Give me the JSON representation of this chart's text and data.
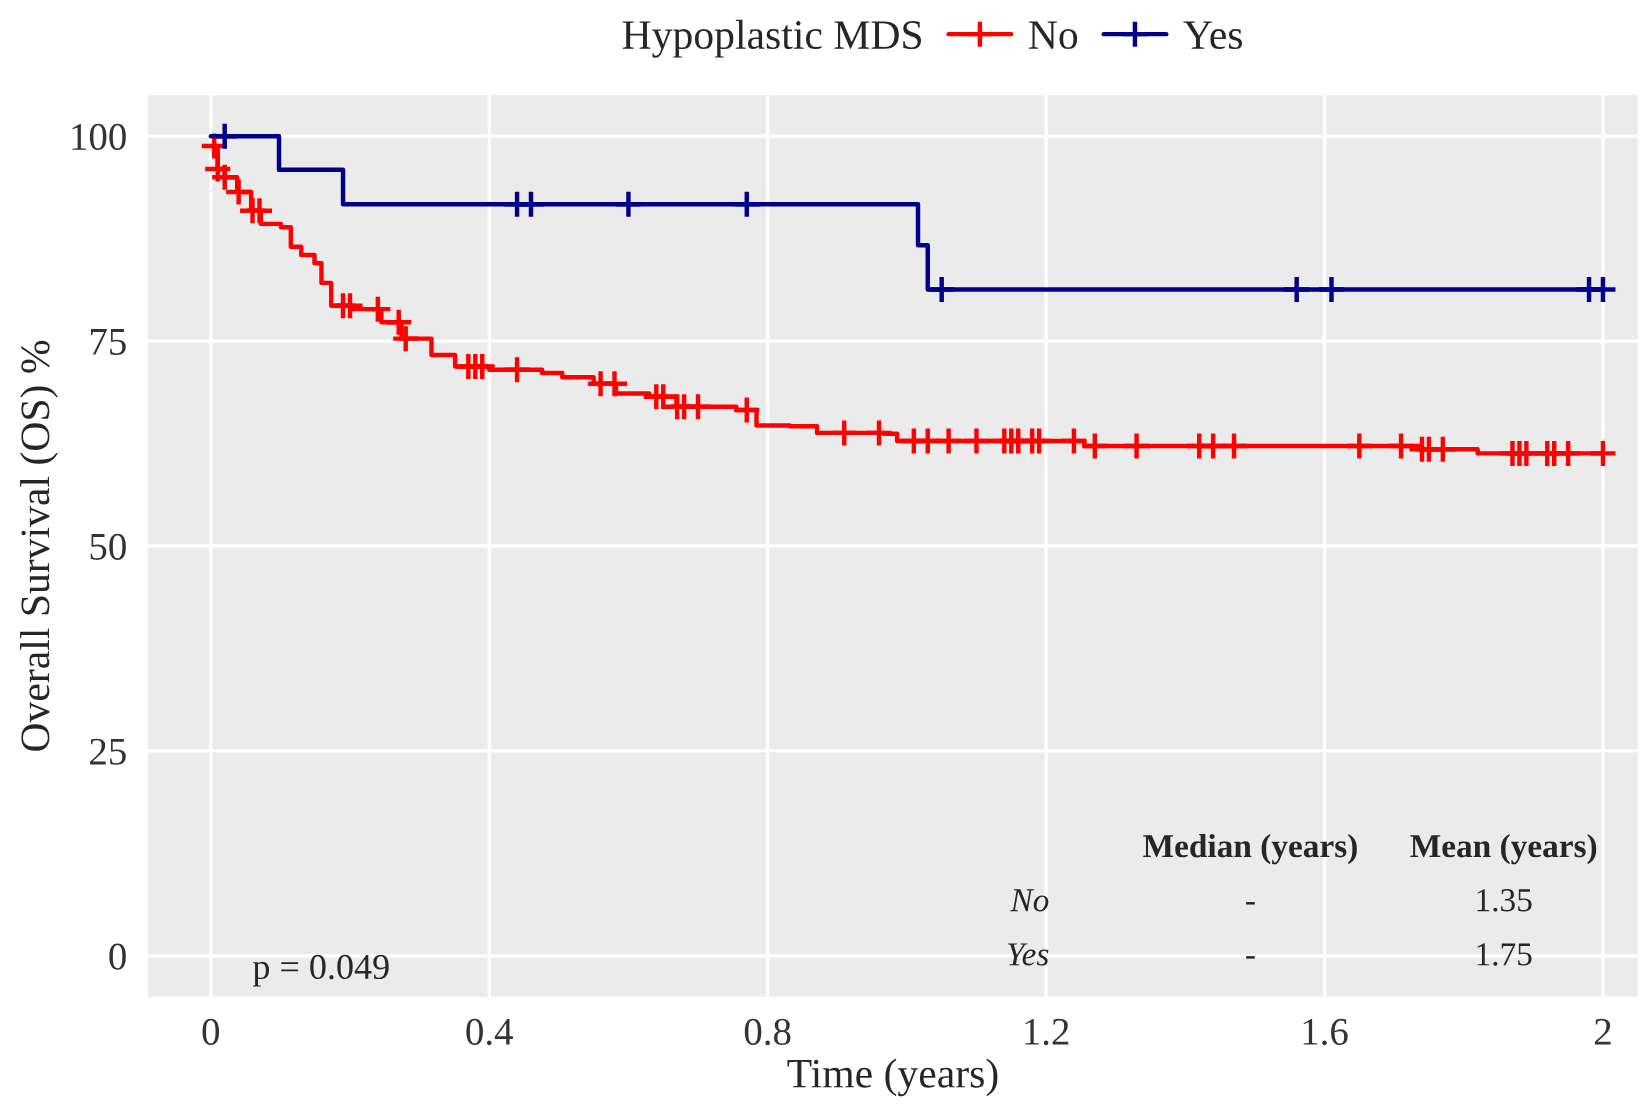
{
  "chart_data": {
    "type": "step",
    "xlabel": "Time (years)",
    "ylabel": "Overall Survival (OS) %",
    "legend_title": "Hypoplastic MDS",
    "legend": "top",
    "xlim": [
      -0.09,
      2.05
    ],
    "ylim": [
      -5,
      105
    ],
    "xticks": [
      0,
      0.4,
      0.8,
      1.2,
      1.6,
      2
    ],
    "yticks": [
      0,
      25,
      50,
      75,
      100
    ],
    "grid": true,
    "line_style": "solid",
    "series": [
      {
        "name": "No",
        "color": "#ff0000",
        "x": [
          0,
          0.01,
          0.02,
          0.038,
          0.058,
          0.072,
          0.101,
          0.115,
          0.13,
          0.149,
          0.159,
          0.173,
          0.202,
          0.245,
          0.274,
          0.317,
          0.351,
          0.4,
          0.476,
          0.505,
          0.55,
          0.582,
          0.63,
          0.669,
          0.755,
          0.784,
          0.832,
          0.871,
          0.967,
          0.986,
          1.255,
          1.736,
          1.82,
          2.0
        ],
        "values": [
          98.8,
          96.0,
          95,
          93.2,
          90.9,
          89.3,
          88.9,
          86.5,
          85.5,
          84.5,
          82.1,
          79.3,
          78.9,
          77.3,
          75.3,
          73.3,
          71.9,
          71.5,
          71.1,
          70.6,
          69.8,
          68.6,
          68.2,
          67.0,
          66.6,
          64.7,
          64.6,
          63.8,
          63.7,
          62.8,
          62.2,
          61.8,
          61.3,
          61.3
        ]
      },
      {
        "name": "Yes",
        "color": "#00008b",
        "x": [
          0,
          0.098,
          0.19,
          1.016,
          1.03,
          2.0
        ],
        "values": [
          100,
          95.9,
          91.7,
          86.7,
          81.3,
          81.3
        ]
      },
      {
        "color": "#ff0000",
        "type": "scatter",
        "marker": "cross",
        "x": [
          0.005,
          0.01,
          0.02,
          0.04,
          0.06,
          0.07,
          0.19,
          0.2,
          0.24,
          0.27,
          0.28,
          0.37,
          0.38,
          0.39,
          0.44,
          0.56,
          0.58,
          0.64,
          0.65,
          0.67,
          0.68,
          0.7,
          0.77,
          0.91,
          0.96,
          1.01,
          1.03,
          1.06,
          1.1,
          1.14,
          1.15,
          1.16,
          1.18,
          1.19,
          1.24,
          1.27,
          1.33,
          1.42,
          1.44,
          1.47,
          1.65,
          1.71,
          1.74,
          1.75,
          1.77,
          1.87,
          1.88,
          1.89,
          1.92,
          1.93,
          1.95,
          2.0
        ],
        "values": [
          98.8,
          96.0,
          95,
          93.2,
          90.9,
          90.9,
          79.3,
          79.3,
          78.9,
          77.3,
          75.3,
          71.9,
          71.9,
          71.9,
          71.5,
          69.8,
          69.8,
          68.2,
          68.2,
          67.0,
          67.0,
          67.0,
          66.6,
          63.8,
          63.8,
          62.8,
          62.8,
          62.8,
          62.8,
          62.8,
          62.8,
          62.8,
          62.8,
          62.8,
          62.8,
          62.2,
          62.2,
          62.2,
          62.2,
          62.2,
          62.2,
          62.2,
          61.8,
          61.8,
          61.8,
          61.3,
          61.3,
          61.3,
          61.3,
          61.3,
          61.3,
          61.3
        ]
      },
      {
        "color": "#00008b",
        "type": "scatter",
        "marker": "cross",
        "x": [
          0.02,
          0.44,
          0.46,
          0.6,
          0.77,
          1.05,
          1.56,
          1.61,
          1.98,
          2.0
        ],
        "values": [
          100,
          91.7,
          91.7,
          91.7,
          91.7,
          81.3,
          81.3,
          81.3,
          81.3,
          81.3
        ]
      }
    ],
    "annotations": [
      "p = 0.049",
      "Median (years)",
      "Mean (years)",
      "No",
      "-",
      "1.35",
      "Yes",
      "-",
      "1.75"
    ]
  }
}
